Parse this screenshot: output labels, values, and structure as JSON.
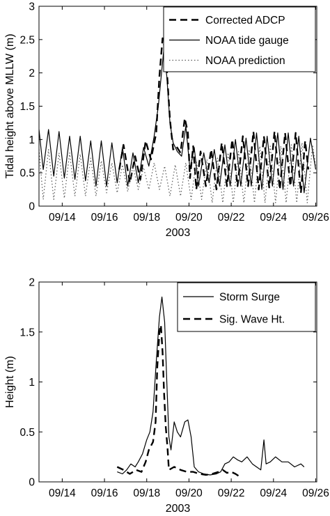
{
  "chart_data": [
    {
      "type": "line",
      "ylabel": "Tidal height above MLLW (m)",
      "xlabel": "2003",
      "xlim": [
        12.9,
        26.05
      ],
      "ylim": [
        0,
        3
      ],
      "xticks": [
        14,
        16,
        18,
        20,
        22,
        24,
        26
      ],
      "xtick_labels": [
        "09/14",
        "09/16",
        "09/18",
        "09/20",
        "09/22",
        "09/24",
        "09/26"
      ],
      "yticks": [
        0,
        0.5,
        1,
        1.5,
        2,
        2.5,
        3
      ],
      "ytick_labels": [
        "0",
        "0.5",
        "1",
        "1.5",
        "2",
        "2.5",
        "3"
      ],
      "x_unit": "day of September 2003",
      "legend_position": "top-right",
      "series": [
        {
          "name": "Corrected ADCP",
          "style": "dashed",
          "points": [
            [
              16.7,
              0.55
            ],
            [
              16.9,
              0.92
            ],
            [
              17.2,
              0.35
            ],
            [
              17.45,
              0.75
            ],
            [
              17.7,
              0.4
            ],
            [
              17.95,
              0.98
            ],
            [
              18.2,
              0.7
            ],
            [
              18.45,
              1.1
            ],
            [
              18.6,
              1.95
            ],
            [
              18.75,
              2.52
            ],
            [
              18.9,
              2.3
            ],
            [
              19.1,
              1.3
            ],
            [
              19.25,
              0.85
            ],
            [
              19.4,
              0.9
            ],
            [
              19.6,
              0.8
            ],
            [
              19.8,
              1.32
            ],
            [
              19.95,
              1.1
            ],
            [
              20.05,
              0.42
            ],
            [
              20.2,
              0.9
            ],
            [
              20.35,
              0.25
            ],
            [
              20.55,
              0.82
            ],
            [
              20.8,
              0.3
            ],
            [
              21.05,
              0.85
            ],
            [
              21.3,
              0.25
            ],
            [
              21.55,
              0.95
            ],
            [
              21.8,
              0.3
            ],
            [
              22.05,
              1.0
            ],
            [
              22.3,
              0.3
            ],
            [
              22.55,
              1.05
            ],
            [
              22.8,
              0.3
            ],
            [
              23.05,
              1.12
            ],
            [
              23.3,
              0.25
            ],
            [
              23.55,
              1.05
            ],
            [
              23.8,
              0.28
            ],
            [
              24.05,
              1.12
            ],
            [
              24.3,
              0.25
            ],
            [
              24.55,
              1.1
            ],
            [
              24.8,
              0.3
            ],
            [
              25.05,
              1.1
            ],
            [
              25.3,
              0.2
            ],
            [
              25.5,
              0.98
            ],
            [
              25.65,
              0.55
            ]
          ]
        },
        {
          "name": "NOAA tide gauge",
          "style": "solid",
          "points": [
            [
              12.9,
              1.15
            ],
            [
              13.1,
              0.55
            ],
            [
              13.35,
              1.15
            ],
            [
              13.6,
              0.45
            ],
            [
              13.85,
              1.12
            ],
            [
              14.1,
              0.42
            ],
            [
              14.35,
              1.05
            ],
            [
              14.6,
              0.4
            ],
            [
              14.85,
              1.05
            ],
            [
              15.1,
              0.38
            ],
            [
              15.35,
              0.98
            ],
            [
              15.6,
              0.3
            ],
            [
              15.85,
              0.98
            ],
            [
              16.1,
              0.3
            ],
            [
              16.35,
              0.95
            ],
            [
              16.6,
              0.35
            ],
            [
              16.85,
              0.88
            ],
            [
              17.1,
              0.3
            ],
            [
              17.35,
              0.8
            ],
            [
              17.6,
              0.35
            ],
            [
              17.85,
              0.88
            ],
            [
              18.1,
              0.6
            ],
            [
              18.35,
              1.05
            ],
            [
              18.55,
              1.5
            ],
            [
              18.7,
              2.0
            ],
            [
              18.8,
              2.32
            ],
            [
              18.95,
              1.95
            ],
            [
              19.1,
              1.25
            ],
            [
              19.25,
              0.95
            ],
            [
              19.45,
              0.82
            ],
            [
              19.65,
              0.75
            ],
            [
              19.85,
              1.2
            ],
            [
              20.05,
              0.55
            ],
            [
              20.25,
              0.88
            ],
            [
              20.45,
              0.3
            ],
            [
              20.7,
              0.8
            ],
            [
              20.95,
              0.35
            ],
            [
              21.2,
              0.85
            ],
            [
              21.45,
              0.3
            ],
            [
              21.7,
              0.92
            ],
            [
              21.95,
              0.3
            ],
            [
              22.2,
              1.0
            ],
            [
              22.45,
              0.3
            ],
            [
              22.7,
              1.02
            ],
            [
              22.95,
              0.3
            ],
            [
              23.2,
              1.1
            ],
            [
              23.45,
              0.25
            ],
            [
              23.7,
              1.05
            ],
            [
              23.95,
              0.3
            ],
            [
              24.2,
              1.1
            ],
            [
              24.45,
              0.25
            ],
            [
              24.7,
              1.1
            ],
            [
              24.95,
              0.3
            ],
            [
              25.2,
              1.05
            ],
            [
              25.45,
              0.2
            ],
            [
              25.75,
              1.02
            ],
            [
              26.0,
              0.55
            ]
          ]
        },
        {
          "name": "NOAA prediction",
          "style": "dotted",
          "points": [
            [
              12.9,
              0.85
            ],
            [
              13.1,
              0.1
            ],
            [
              13.35,
              0.85
            ],
            [
              13.6,
              0.1
            ],
            [
              13.85,
              0.8
            ],
            [
              14.1,
              0.12
            ],
            [
              14.35,
              0.8
            ],
            [
              14.6,
              0.15
            ],
            [
              14.85,
              0.78
            ],
            [
              15.1,
              0.15
            ],
            [
              15.35,
              0.72
            ],
            [
              15.6,
              0.15
            ],
            [
              15.85,
              0.68
            ],
            [
              16.1,
              0.2
            ],
            [
              16.35,
              0.65
            ],
            [
              16.6,
              0.2
            ],
            [
              16.85,
              0.62
            ],
            [
              17.1,
              0.22
            ],
            [
              17.35,
              0.6
            ],
            [
              17.6,
              0.25
            ],
            [
              17.85,
              0.58
            ],
            [
              18.1,
              0.25
            ],
            [
              18.35,
              0.65
            ],
            [
              18.6,
              0.25
            ],
            [
              18.85,
              0.6
            ],
            [
              19.1,
              0.15
            ],
            [
              19.35,
              0.62
            ],
            [
              19.6,
              0.15
            ],
            [
              19.85,
              0.65
            ],
            [
              20.1,
              0.1
            ],
            [
              20.35,
              0.68
            ],
            [
              20.6,
              0.1
            ],
            [
              20.85,
              0.7
            ],
            [
              21.1,
              0.05
            ],
            [
              21.35,
              0.72
            ],
            [
              21.6,
              0.05
            ],
            [
              21.85,
              0.8
            ],
            [
              22.1,
              0.05
            ],
            [
              22.35,
              0.82
            ],
            [
              22.6,
              0.05
            ],
            [
              22.85,
              0.85
            ],
            [
              23.1,
              0.05
            ],
            [
              23.35,
              0.9
            ],
            [
              23.6,
              0.05
            ],
            [
              23.85,
              0.9
            ],
            [
              24.1,
              0.05
            ],
            [
              24.35,
              0.9
            ],
            [
              24.6,
              0.05
            ],
            [
              24.85,
              0.92
            ],
            [
              25.1,
              0.05
            ],
            [
              25.35,
              0.95
            ],
            [
              25.6,
              0.05
            ],
            [
              25.85,
              0.92
            ],
            [
              26.0,
              0.6
            ]
          ]
        }
      ]
    },
    {
      "type": "line",
      "ylabel": "Height (m)",
      "xlabel": "2003",
      "xlim": [
        12.9,
        26.05
      ],
      "ylim": [
        0,
        2
      ],
      "xticks": [
        14,
        16,
        18,
        20,
        22,
        24,
        26
      ],
      "xtick_labels": [
        "09/14",
        "09/16",
        "09/18",
        "09/20",
        "09/22",
        "09/24",
        "09/26"
      ],
      "yticks": [
        0,
        0.5,
        1,
        1.5,
        2
      ],
      "ytick_labels": [
        "0",
        "0.5",
        "1",
        "1.5",
        "2"
      ],
      "x_unit": "day of September 2003",
      "legend_position": "top-right",
      "series": [
        {
          "name": "Storm Surge",
          "style": "solid",
          "points": [
            [
              16.6,
              0.1
            ],
            [
              16.85,
              0.08
            ],
            [
              17.05,
              0.12
            ],
            [
              17.25,
              0.18
            ],
            [
              17.45,
              0.15
            ],
            [
              17.6,
              0.2
            ],
            [
              17.8,
              0.28
            ],
            [
              18.0,
              0.42
            ],
            [
              18.15,
              0.5
            ],
            [
              18.3,
              0.7
            ],
            [
              18.45,
              1.2
            ],
            [
              18.6,
              1.65
            ],
            [
              18.72,
              1.85
            ],
            [
              18.85,
              1.6
            ],
            [
              18.95,
              1.0
            ],
            [
              19.05,
              0.45
            ],
            [
              19.15,
              0.32
            ],
            [
              19.3,
              0.6
            ],
            [
              19.45,
              0.5
            ],
            [
              19.6,
              0.45
            ],
            [
              19.8,
              0.6
            ],
            [
              19.95,
              0.62
            ],
            [
              20.1,
              0.45
            ],
            [
              20.25,
              0.15
            ],
            [
              20.45,
              0.1
            ],
            [
              20.7,
              0.08
            ],
            [
              21.0,
              0.07
            ],
            [
              21.3,
              0.08
            ],
            [
              21.5,
              0.1
            ],
            [
              21.7,
              0.18
            ],
            [
              21.9,
              0.2
            ],
            [
              22.1,
              0.25
            ],
            [
              22.3,
              0.22
            ],
            [
              22.5,
              0.2
            ],
            [
              22.75,
              0.25
            ],
            [
              23.0,
              0.18
            ],
            [
              23.2,
              0.15
            ],
            [
              23.4,
              0.12
            ],
            [
              23.55,
              0.42
            ],
            [
              23.65,
              0.18
            ],
            [
              23.85,
              0.2
            ],
            [
              24.1,
              0.25
            ],
            [
              24.4,
              0.2
            ],
            [
              24.7,
              0.2
            ],
            [
              25.0,
              0.15
            ],
            [
              25.3,
              0.18
            ],
            [
              25.45,
              0.15
            ]
          ]
        },
        {
          "name": "Sig. Wave Ht.",
          "style": "dashed",
          "points": [
            [
              16.6,
              0.15
            ],
            [
              16.9,
              0.12
            ],
            [
              17.2,
              0.08
            ],
            [
              17.5,
              0.12
            ],
            [
              17.75,
              0.1
            ],
            [
              17.95,
              0.2
            ],
            [
              18.1,
              0.32
            ],
            [
              18.3,
              0.4
            ],
            [
              18.42,
              0.6
            ],
            [
              18.5,
              1.15
            ],
            [
              18.6,
              1.5
            ],
            [
              18.67,
              1.57
            ],
            [
              18.75,
              1.3
            ],
            [
              18.82,
              0.9
            ],
            [
              18.9,
              0.55
            ],
            [
              18.98,
              0.35
            ],
            [
              19.05,
              0.12
            ],
            [
              19.3,
              0.15
            ],
            [
              19.6,
              0.12
            ],
            [
              19.9,
              0.1
            ],
            [
              20.2,
              0.1
            ],
            [
              20.5,
              0.08
            ],
            [
              20.8,
              0.07
            ],
            [
              21.1,
              0.08
            ],
            [
              21.4,
              0.1
            ],
            [
              21.6,
              0.12
            ],
            [
              21.8,
              0.09
            ],
            [
              22.0,
              0.1
            ],
            [
              22.2,
              0.08
            ],
            [
              22.35,
              0.06
            ]
          ]
        }
      ]
    }
  ]
}
